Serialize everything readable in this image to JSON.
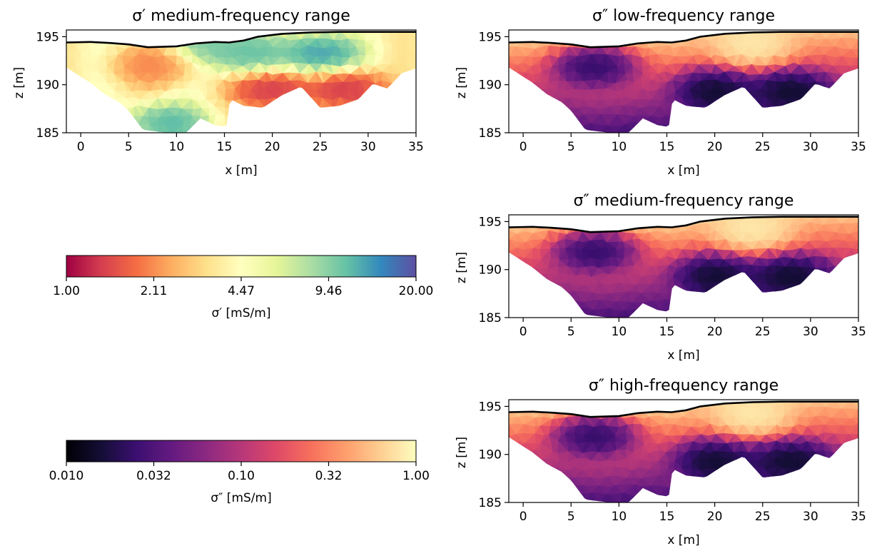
{
  "chart_data": [
    {
      "type": "heatmap",
      "title": "σ′ medium-frequency range",
      "xlabel": "x [m]",
      "ylabel": "z [m]",
      "xlim": [
        -1.5,
        35
      ],
      "ylim": [
        185,
        195.7
      ],
      "xticks": [
        "0",
        "5",
        "10",
        "15",
        "20",
        "25",
        "30",
        "35"
      ],
      "yticks": [
        "185",
        "190",
        "195"
      ],
      "colormap": "spectral",
      "colorbar": "sigma_real",
      "surface": [
        [
          -1.5,
          194.4
        ],
        [
          1,
          194.45
        ],
        [
          3,
          194.35
        ],
        [
          5,
          194.2
        ],
        [
          7,
          193.9
        ],
        [
          10,
          194.0
        ],
        [
          12,
          194.3
        ],
        [
          14,
          194.45
        ],
        [
          15.5,
          194.4
        ],
        [
          17,
          194.6
        ],
        [
          18.5,
          195.0
        ],
        [
          21,
          195.3
        ],
        [
          24,
          195.45
        ],
        [
          27,
          195.5
        ],
        [
          30,
          195.5
        ],
        [
          33,
          195.5
        ],
        [
          35,
          195.5
        ]
      ],
      "anomalies": [
        {
          "x": 7.5,
          "z": 192.0,
          "value_mSm": 1.8
        },
        {
          "x": 9.0,
          "z": 186.0,
          "value_mSm": 15.0
        },
        {
          "x": 17.5,
          "z": 193.3,
          "value_mSm": 14.0
        },
        {
          "x": 25.0,
          "z": 193.3,
          "value_mSm": 18.0
        },
        {
          "x": 14.0,
          "z": 194.3,
          "value_mSm": 12.0
        },
        {
          "x": 20.0,
          "z": 189.5,
          "value_mSm": 1.0
        },
        {
          "x": 28.0,
          "z": 189.5,
          "value_mSm": 1.0
        }
      ]
    },
    {
      "type": "heatmap",
      "title": "σ″ low-frequency range",
      "xlabel": "x [m]",
      "ylabel": "z [m]",
      "xlim": [
        -1.5,
        35
      ],
      "ylim": [
        185,
        195.7
      ],
      "xticks": [
        "0",
        "5",
        "10",
        "15",
        "20",
        "25",
        "30",
        "35"
      ],
      "yticks": [
        "185",
        "190",
        "195"
      ],
      "colormap": "magma",
      "colorbar": "sigma_imag",
      "surface": [
        [
          -1.5,
          194.4
        ],
        [
          1,
          194.45
        ],
        [
          3,
          194.35
        ],
        [
          5,
          194.2
        ],
        [
          7,
          193.9
        ],
        [
          10,
          194.0
        ],
        [
          12,
          194.3
        ],
        [
          14,
          194.45
        ],
        [
          15.5,
          194.4
        ],
        [
          17,
          194.6
        ],
        [
          18.5,
          195.0
        ],
        [
          21,
          195.3
        ],
        [
          24,
          195.45
        ],
        [
          27,
          195.5
        ],
        [
          30,
          195.5
        ],
        [
          33,
          195.5
        ],
        [
          35,
          195.5
        ]
      ],
      "anomalies": [
        {
          "x": 7.5,
          "z": 192.0,
          "value_mSm": 0.012
        },
        {
          "x": 20.0,
          "z": 189.5,
          "value_mSm": 0.01
        },
        {
          "x": 28.0,
          "z": 189.5,
          "value_mSm": 0.01
        },
        {
          "x": 24.0,
          "z": 193.8,
          "value_mSm": 1.0
        }
      ]
    },
    {
      "type": "heatmap",
      "title": "σ″ medium-frequency range",
      "xlabel": "x [m]",
      "ylabel": "z [m]",
      "xlim": [
        -1.5,
        35
      ],
      "ylim": [
        185,
        195.7
      ],
      "xticks": [
        "0",
        "5",
        "10",
        "15",
        "20",
        "25",
        "30",
        "35"
      ],
      "yticks": [
        "185",
        "190",
        "195"
      ],
      "colormap": "magma",
      "colorbar": "sigma_imag",
      "surface": [
        [
          -1.5,
          194.4
        ],
        [
          1,
          194.45
        ],
        [
          3,
          194.35
        ],
        [
          5,
          194.2
        ],
        [
          7,
          193.9
        ],
        [
          10,
          194.0
        ],
        [
          12,
          194.3
        ],
        [
          14,
          194.45
        ],
        [
          15.5,
          194.4
        ],
        [
          17,
          194.6
        ],
        [
          18.5,
          195.0
        ],
        [
          21,
          195.3
        ],
        [
          24,
          195.45
        ],
        [
          27,
          195.5
        ],
        [
          30,
          195.5
        ],
        [
          33,
          195.5
        ],
        [
          35,
          195.5
        ]
      ],
      "anomalies": [
        {
          "x": 7.5,
          "z": 192.0,
          "value_mSm": 0.012
        },
        {
          "x": 20.0,
          "z": 189.5,
          "value_mSm": 0.01
        },
        {
          "x": 28.0,
          "z": 189.5,
          "value_mSm": 0.01
        },
        {
          "x": 24.0,
          "z": 193.8,
          "value_mSm": 1.0
        }
      ]
    },
    {
      "type": "heatmap",
      "title": "σ″ high-frequency range",
      "xlabel": "x [m]",
      "ylabel": "z [m]",
      "xlim": [
        -1.5,
        35
      ],
      "ylim": [
        185,
        195.7
      ],
      "xticks": [
        "0",
        "5",
        "10",
        "15",
        "20",
        "25",
        "30",
        "35"
      ],
      "yticks": [
        "185",
        "190",
        "195"
      ],
      "colormap": "magma",
      "colorbar": "sigma_imag",
      "surface": [
        [
          -1.5,
          194.4
        ],
        [
          1,
          194.45
        ],
        [
          3,
          194.35
        ],
        [
          5,
          194.2
        ],
        [
          7,
          193.9
        ],
        [
          10,
          194.0
        ],
        [
          12,
          194.3
        ],
        [
          14,
          194.45
        ],
        [
          15.5,
          194.4
        ],
        [
          17,
          194.6
        ],
        [
          18.5,
          195.0
        ],
        [
          21,
          195.3
        ],
        [
          24,
          195.45
        ],
        [
          27,
          195.5
        ],
        [
          30,
          195.5
        ],
        [
          33,
          195.5
        ],
        [
          35,
          195.5
        ]
      ],
      "anomalies": [
        {
          "x": 7.5,
          "z": 192.0,
          "value_mSm": 0.012
        },
        {
          "x": 20.0,
          "z": 189.5,
          "value_mSm": 0.01
        },
        {
          "x": 28.0,
          "z": 189.5,
          "value_mSm": 0.01
        },
        {
          "x": 24.0,
          "z": 193.8,
          "value_mSm": 1.0
        }
      ]
    }
  ],
  "colorbars": {
    "sigma_real": {
      "label": "σ′ [mS/m]",
      "ticks": [
        "1.00",
        "2.11",
        "4.47",
        "9.46",
        "20.00"
      ],
      "range": [
        1.0,
        20.0
      ],
      "scale": "log",
      "colors": [
        "#9e0142",
        "#d53e4f",
        "#f46d43",
        "#fdae61",
        "#fee08b",
        "#ffffbf",
        "#e6f598",
        "#abdda4",
        "#66c2a5",
        "#3288bd",
        "#5e4fa2"
      ]
    },
    "sigma_imag": {
      "label": "σ″ [mS/m]",
      "ticks": [
        "0.010",
        "0.032",
        "0.10",
        "0.32",
        "1.00"
      ],
      "range": [
        0.01,
        1.0
      ],
      "scale": "log",
      "colors": [
        "#000004",
        "#140e36",
        "#3b0f70",
        "#641a80",
        "#8c2981",
        "#b73779",
        "#de4968",
        "#f7705c",
        "#fe9f6d",
        "#fecf92",
        "#fcfdbf"
      ]
    }
  }
}
